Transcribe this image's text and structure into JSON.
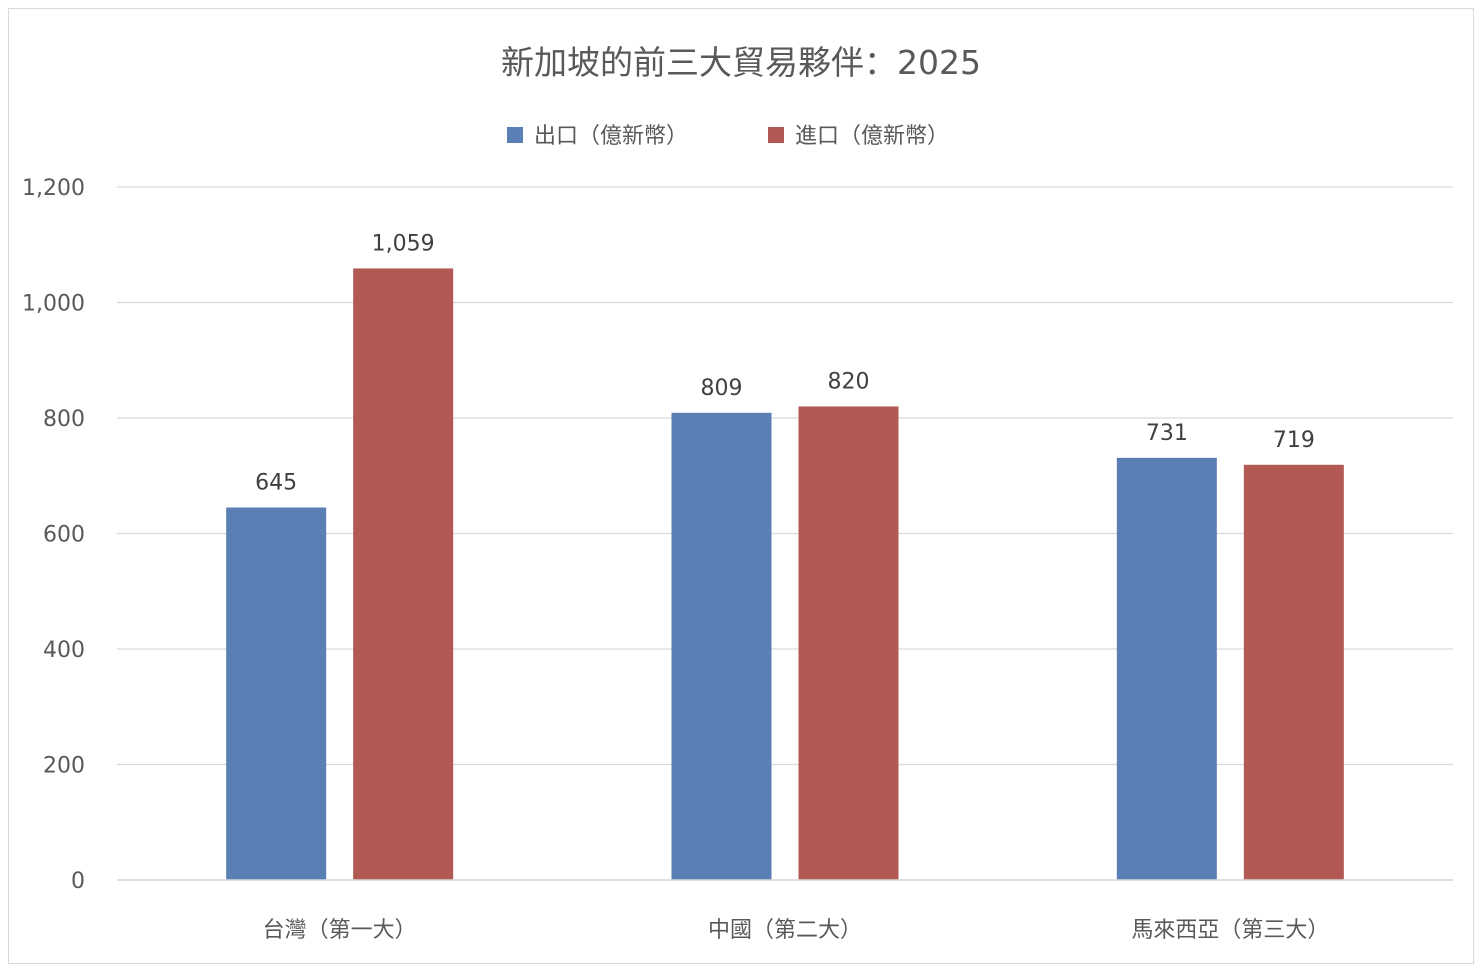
{
  "chart_data": {
    "type": "bar",
    "title": "新加坡的前三大貿易夥伴：2025",
    "categories": [
      "台灣（第一大）",
      "中國（第二大）",
      "馬來西亞（第三大）"
    ],
    "series": [
      {
        "name": "出口（億新幣）",
        "color": "#5A7FB5",
        "values": [
          645,
          809,
          731
        ],
        "labels": [
          "645",
          "809",
          "731"
        ]
      },
      {
        "name": "進口（億新幣）",
        "color": "#B15952",
        "values": [
          1059,
          820,
          719
        ],
        "labels": [
          "1,059",
          "820",
          "719"
        ]
      }
    ],
    "ylim": [
      0,
      1200
    ],
    "yticks": [
      0,
      200,
      400,
      600,
      800,
      1000,
      1200
    ],
    "ytick_labels": [
      "0",
      "200",
      "400",
      "600",
      "800",
      "1,000",
      "1,200"
    ],
    "grid": true,
    "legend": "top-center",
    "xlabel": "",
    "ylabel": ""
  }
}
